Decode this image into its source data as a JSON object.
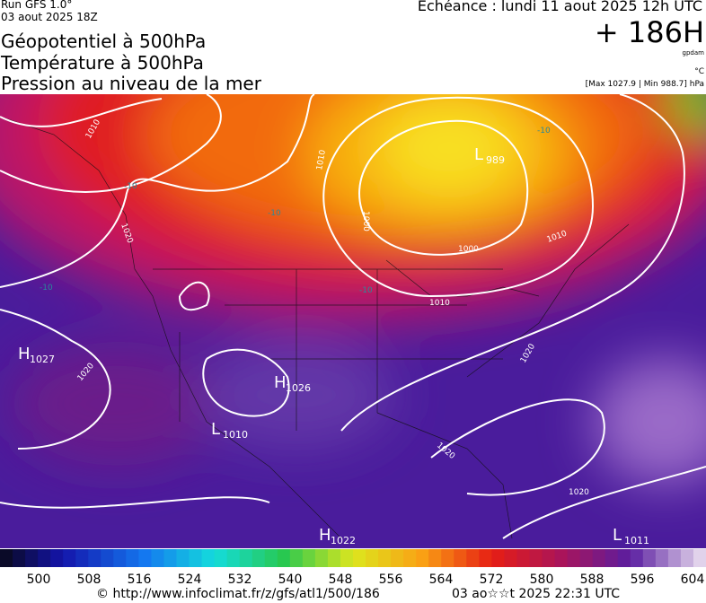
{
  "header": {
    "run": "Run GFS 1.0°",
    "date": "03 aout 2025 18Z",
    "titles": [
      "Géopotentiel à 500hPa",
      "Température à 500hPa",
      "Pression au niveau de la mer"
    ],
    "forecast": "Echéance : lundi 11 aout 2025 12h UTC",
    "lead": "+ 186H",
    "unit_geo": "gpdam",
    "unit_temp": "°C",
    "pressure_range": "[Max 1027.9 | Min 988.7] hPa"
  },
  "centers": [
    {
      "letter": "H",
      "value": "1027"
    },
    {
      "letter": "H",
      "value": "1026"
    },
    {
      "letter": "L",
      "value": "1010"
    },
    {
      "letter": "H",
      "value": "1022"
    },
    {
      "letter": "L",
      "value": "1011"
    },
    {
      "letter": "L",
      "value": "989"
    }
  ],
  "isobar_labels": [
    "1010",
    "1020",
    "1010",
    "1000",
    "1000",
    "1010",
    "1010",
    "1020",
    "1020",
    "1020",
    "1020"
  ],
  "temperature_labels": [
    "-10",
    "-10",
    "-10",
    "-10",
    "-10"
  ],
  "colorbar": {
    "ticks": [
      500,
      508,
      516,
      524,
      532,
      540,
      548,
      556,
      564,
      572,
      580,
      588,
      596,
      604
    ]
  },
  "footer": {
    "url": "© http://www.infoclimat.fr/z/gfs/atl1/500/186",
    "generated": "03 ao☆☆t 2025 22:31 UTC"
  }
}
